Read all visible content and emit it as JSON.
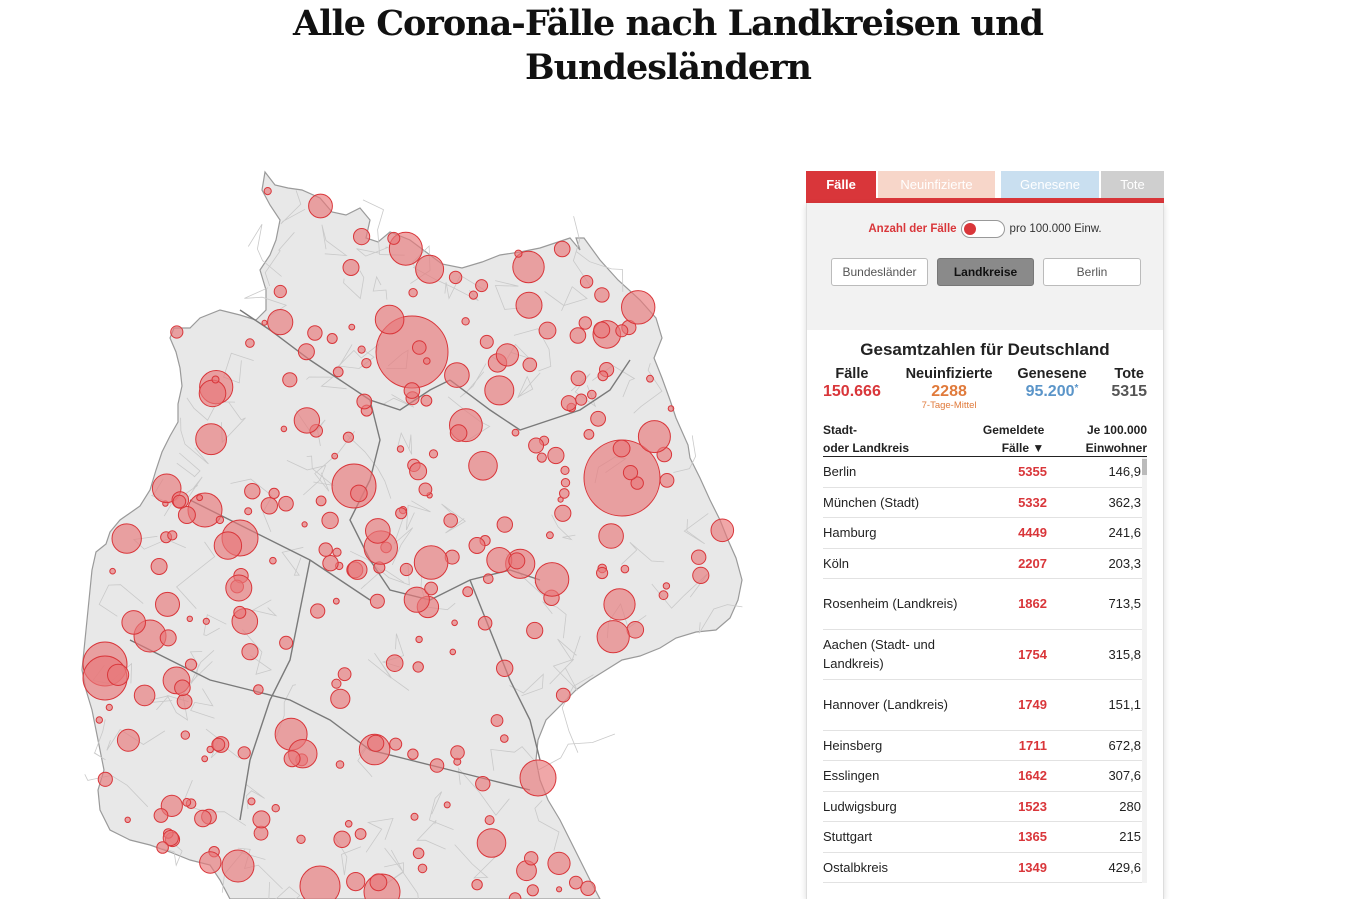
{
  "title": {
    "line1": "Alle Corona-Fälle nach Landkreisen und",
    "line2": "Bundesländern"
  },
  "tabs": [
    "Fälle",
    "Neuinfizierte",
    "Genesene",
    "Tote"
  ],
  "toggle": {
    "on_label": "Anzahl der Fälle",
    "off_label": "pro 100.000 Einw."
  },
  "segments": [
    "Bundesländer",
    "Landkreise",
    "Berlin"
  ],
  "totals": {
    "title": "Gesamtzahlen für Deutschland",
    "cases_label": "Fälle",
    "cases_value": "150.666",
    "new_label": "Neuinfizierte",
    "new_value": "2288",
    "new_sub": "7-Tage-Mittel",
    "recovered_label": "Genesene",
    "recovered_value": "95.200",
    "recovered_mark": "*",
    "deaths_label": "Tote",
    "deaths_value": "5315"
  },
  "table": {
    "col1_l1": "Stadt-",
    "col1_l2": "oder Landkreis",
    "col2_l1": "Gemeldete",
    "col2_l2": "Fälle ▼",
    "col3_l1": "Je 100.000",
    "col3_l2": "Einwohner",
    "rows": [
      {
        "name": "Berlin",
        "cases": "5355",
        "per100k": "146,9"
      },
      {
        "name": "München (Stadt)",
        "cases": "5332",
        "per100k": "362,3"
      },
      {
        "name": "Hamburg",
        "cases": "4449",
        "per100k": "241,6"
      },
      {
        "name": "Köln",
        "cases": "2207",
        "per100k": "203,3"
      },
      {
        "name": "Rosenheim (Landkreis)",
        "cases": "1862",
        "per100k": "713,5"
      },
      {
        "name": "Aachen (Stadt- und Landkreis)",
        "cases": "1754",
        "per100k": "315,8"
      },
      {
        "name": "Hannover (Landkreis)",
        "cases": "1749",
        "per100k": "151,1"
      },
      {
        "name": "Heinsberg",
        "cases": "1711",
        "per100k": "672,8"
      },
      {
        "name": "Esslingen",
        "cases": "1642",
        "per100k": "307,6"
      },
      {
        "name": "Ludwigsburg",
        "cases": "1523",
        "per100k": "280"
      },
      {
        "name": "Stuttgart",
        "cases": "1365",
        "per100k": "215"
      },
      {
        "name": "Ostalbkreis",
        "cases": "1349",
        "per100k": "429,6"
      }
    ]
  },
  "more_icon": "double-chevron-down-icon",
  "colors": {
    "accent": "#d9363a",
    "new": "#e07a3b",
    "recovered": "#5b95c9",
    "deaths": "#555555",
    "map_fill": "#e8e8e8",
    "bubble_fill": "#e8787a",
    "bubble_stroke": "#d9363a"
  }
}
